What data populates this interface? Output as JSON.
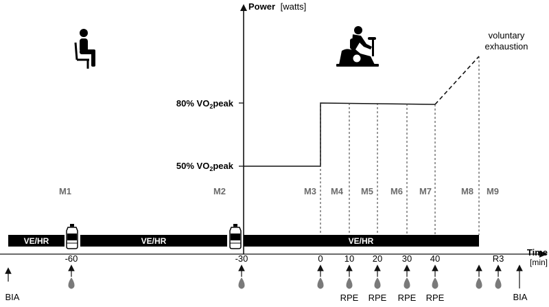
{
  "y_axis": {
    "label": "Power",
    "unit": "[watts]",
    "levels": [
      {
        "label": "80% VO",
        "sub": "2",
        "suffix": "peak"
      },
      {
        "label": "50% VO",
        "sub": "2",
        "suffix": "peak"
      }
    ]
  },
  "x_axis": {
    "label": "Time",
    "unit": "[min]",
    "ticks": [
      "-60",
      "-30",
      "0",
      "10",
      "20",
      "30",
      "40",
      "R3"
    ]
  },
  "phases": [
    "M1",
    "M2",
    "M3",
    "M4",
    "M5",
    "M6",
    "M7",
    "M8",
    "M9"
  ],
  "bars": [
    "VE/HR",
    "VE/HR",
    "VE/HR"
  ],
  "annotation": [
    "voluntary",
    "exhaustion"
  ],
  "rpe_labels": [
    "RPE",
    "RPE",
    "RPE",
    "RPE"
  ],
  "bia_labels": [
    "BIA",
    "BIA"
  ],
  "icons": {
    "rest": "seated-person-icon",
    "exercise": "cycle-ergometer-icon",
    "bottle": "water-bottle-icon",
    "drop": "blood-drop-icon",
    "arrow": "up-arrow-icon"
  },
  "colors": {
    "line": "#111111",
    "bar": "#000000",
    "phase_text": "#6b6b6b",
    "drop": "#7a7a7a"
  }
}
